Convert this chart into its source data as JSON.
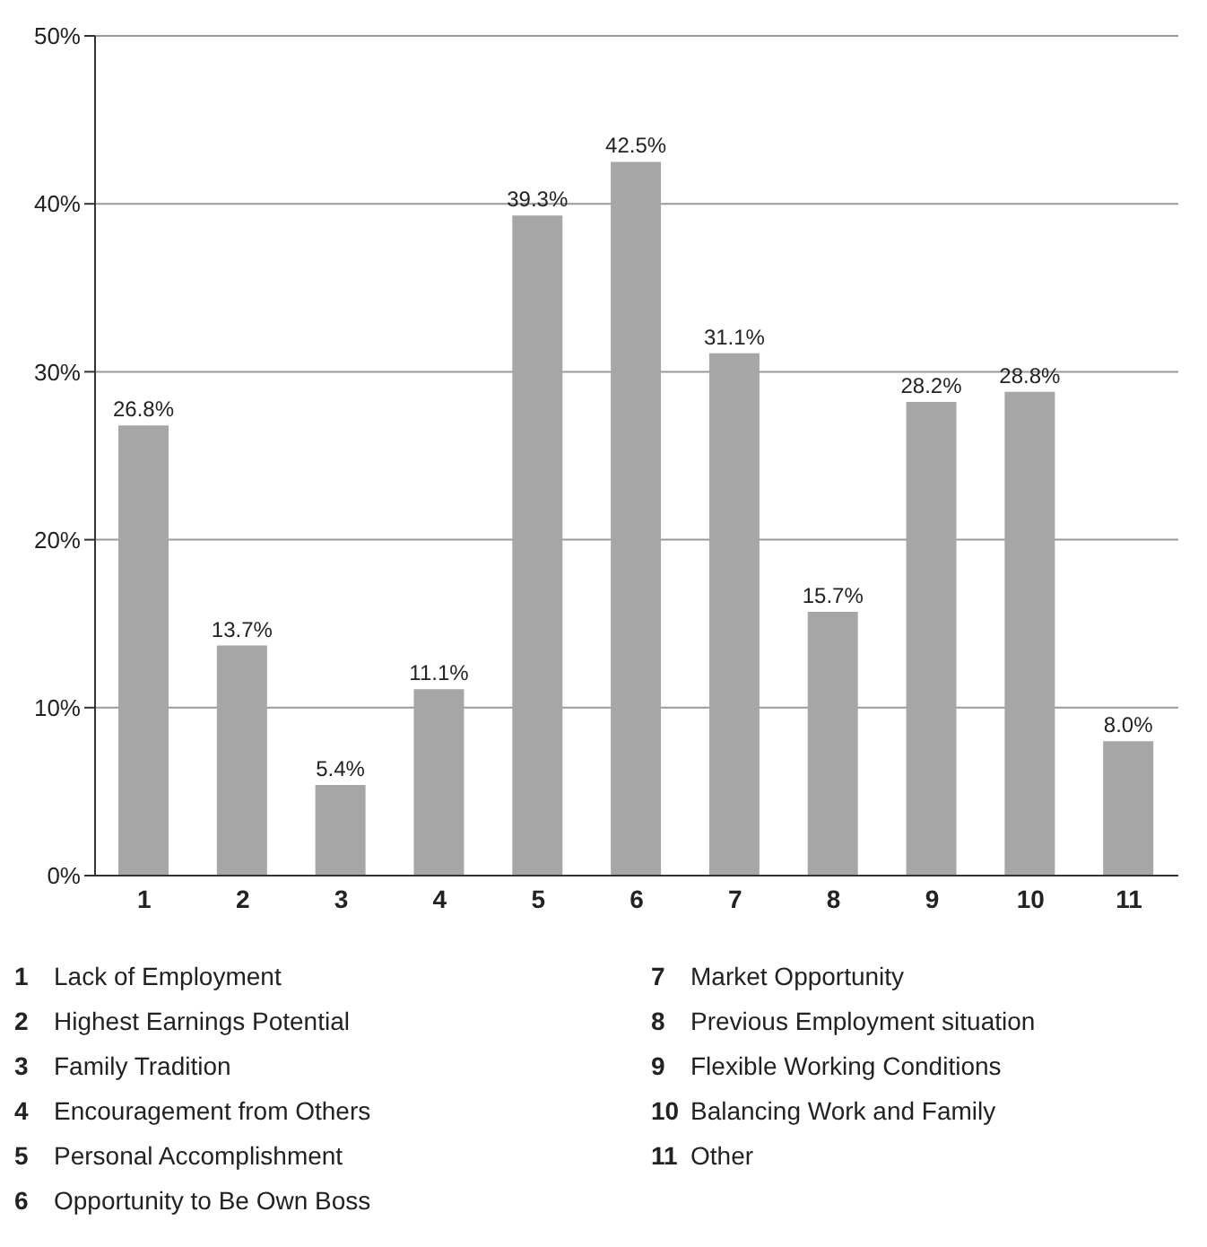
{
  "chart_data": {
    "type": "bar",
    "categories": [
      "1",
      "2",
      "3",
      "4",
      "5",
      "6",
      "7",
      "8",
      "9",
      "10",
      "11"
    ],
    "values": [
      26.8,
      13.7,
      5.4,
      11.1,
      39.3,
      42.5,
      31.1,
      15.7,
      28.2,
      28.8,
      8.0
    ],
    "value_labels": [
      "26.8%",
      "13.7%",
      "5.4%",
      "11.1%",
      "39.3%",
      "42.5%",
      "31.1%",
      "15.7%",
      "28.2%",
      "28.8%",
      "8.0%"
    ],
    "color": "#a6a6a6",
    "ylim": [
      0,
      50
    ],
    "yticks": [
      {
        "value": 0,
        "label": "0%"
      },
      {
        "value": 10,
        "label": "10%"
      },
      {
        "value": 20,
        "label": "20%"
      },
      {
        "value": 30,
        "label": "30%"
      },
      {
        "value": 40,
        "label": "40%"
      },
      {
        "value": 50,
        "label": "50%"
      }
    ],
    "grid": "y",
    "annotations": [
      "Lack of Employment",
      "Highest Earnings Potential",
      "Family Tradition",
      "Encouragement from Others",
      "Personal Accomplishment",
      "Opportunity to Be Own Boss",
      "Market Opportunity",
      "Previous Employment situation",
      "Flexible Working Conditions",
      "Balancing Work and Family",
      "Other"
    ]
  }
}
